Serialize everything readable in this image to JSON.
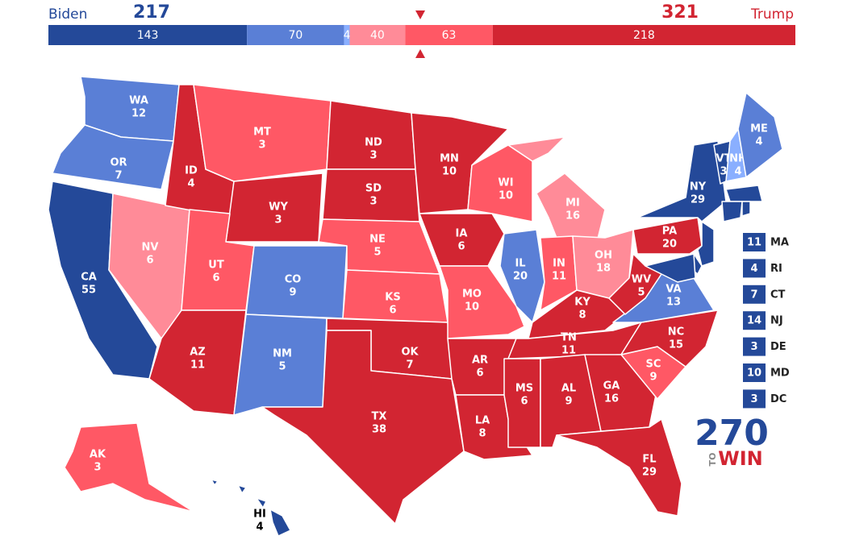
{
  "header": {
    "left_name": "Biden",
    "left_total": 217,
    "right_name": "Trump",
    "right_total": 321
  },
  "bar": {
    "values": [
      143,
      70,
      4,
      40,
      63,
      218
    ],
    "colors": [
      "#244999",
      "#5a7fd6",
      "#8aafff",
      "#ff8b98",
      "#ff5865",
      "#d22532"
    ]
  },
  "states": [
    {
      "abbr": "WA",
      "votes": 12,
      "color": "#5a7fd6"
    },
    {
      "abbr": "OR",
      "votes": 7,
      "color": "#5a7fd6"
    },
    {
      "abbr": "CA",
      "votes": 55,
      "color": "#244999"
    },
    {
      "abbr": "NV",
      "votes": 6,
      "color": "#ff8b98"
    },
    {
      "abbr": "ID",
      "votes": 4,
      "color": "#d22532"
    },
    {
      "abbr": "MT",
      "votes": 3,
      "color": "#ff5865"
    },
    {
      "abbr": "WY",
      "votes": 3,
      "color": "#d22532"
    },
    {
      "abbr": "UT",
      "votes": 6,
      "color": "#ff5865"
    },
    {
      "abbr": "AZ",
      "votes": 11,
      "color": "#d22532"
    },
    {
      "abbr": "CO",
      "votes": 9,
      "color": "#5a7fd6"
    },
    {
      "abbr": "NM",
      "votes": 5,
      "color": "#5a7fd6"
    },
    {
      "abbr": "ND",
      "votes": 3,
      "color": "#d22532"
    },
    {
      "abbr": "SD",
      "votes": 3,
      "color": "#d22532"
    },
    {
      "abbr": "NE",
      "votes": 5,
      "color": "#ff5865"
    },
    {
      "abbr": "KS",
      "votes": 6,
      "color": "#ff5865"
    },
    {
      "abbr": "OK",
      "votes": 7,
      "color": "#d22532"
    },
    {
      "abbr": "TX",
      "votes": 38,
      "color": "#d22532"
    },
    {
      "abbr": "MN",
      "votes": 10,
      "color": "#d22532"
    },
    {
      "abbr": "IA",
      "votes": 6,
      "color": "#d22532"
    },
    {
      "abbr": "MO",
      "votes": 10,
      "color": "#ff5865"
    },
    {
      "abbr": "AR",
      "votes": 6,
      "color": "#d22532"
    },
    {
      "abbr": "LA",
      "votes": 8,
      "color": "#d22532"
    },
    {
      "abbr": "WI",
      "votes": 10,
      "color": "#ff5865"
    },
    {
      "abbr": "IL",
      "votes": 20,
      "color": "#5a7fd6"
    },
    {
      "abbr": "MI",
      "votes": 16,
      "color": "#ff8b98"
    },
    {
      "abbr": "IN",
      "votes": 11,
      "color": "#ff5865"
    },
    {
      "abbr": "OH",
      "votes": 18,
      "color": "#ff8b98"
    },
    {
      "abbr": "KY",
      "votes": 8,
      "color": "#d22532"
    },
    {
      "abbr": "TN",
      "votes": 11,
      "color": "#d22532"
    },
    {
      "abbr": "MS",
      "votes": 6,
      "color": "#d22532"
    },
    {
      "abbr": "AL",
      "votes": 9,
      "color": "#d22532"
    },
    {
      "abbr": "GA",
      "votes": 16,
      "color": "#d22532"
    },
    {
      "abbr": "FL",
      "votes": 29,
      "color": "#d22532"
    },
    {
      "abbr": "SC",
      "votes": 9,
      "color": "#ff5865"
    },
    {
      "abbr": "NC",
      "votes": 15,
      "color": "#d22532"
    },
    {
      "abbr": "VA",
      "votes": 13,
      "color": "#5a7fd6"
    },
    {
      "abbr": "WV",
      "votes": 5,
      "color": "#d22532"
    },
    {
      "abbr": "PA",
      "votes": 20,
      "color": "#d22532"
    },
    {
      "abbr": "NY",
      "votes": 29,
      "color": "#244999"
    },
    {
      "abbr": "VT",
      "votes": 3,
      "color": "#244999"
    },
    {
      "abbr": "NH",
      "votes": 4,
      "color": "#8aafff"
    },
    {
      "abbr": "ME",
      "votes": 4,
      "color": "#5a7fd6"
    },
    {
      "abbr": "AK",
      "votes": 3,
      "color": "#ff5865"
    },
    {
      "abbr": "HI",
      "votes": 4,
      "color": "#244999"
    }
  ],
  "small_states": [
    {
      "abbr": "MA",
      "votes": 11,
      "color": "#244999"
    },
    {
      "abbr": "RI",
      "votes": 4,
      "color": "#244999"
    },
    {
      "abbr": "CT",
      "votes": 7,
      "color": "#244999"
    },
    {
      "abbr": "NJ",
      "votes": 14,
      "color": "#244999"
    },
    {
      "abbr": "DE",
      "votes": 3,
      "color": "#244999"
    },
    {
      "abbr": "MD",
      "votes": 10,
      "color": "#244999"
    },
    {
      "abbr": "DC",
      "votes": 3,
      "color": "#244999"
    }
  ],
  "logo": {
    "number": "270",
    "to": "TO",
    "win": "WIN"
  }
}
